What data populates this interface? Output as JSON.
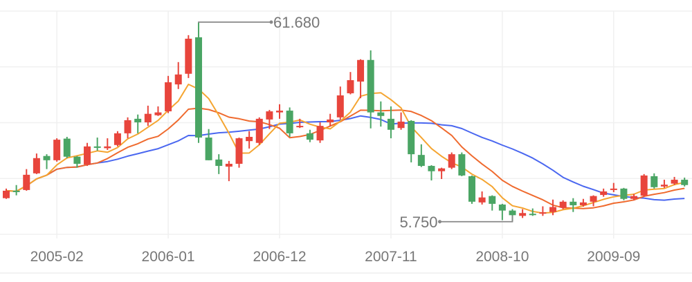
{
  "chart_data": {
    "type": "candlestick",
    "title": "",
    "xlabel": "",
    "ylabel": "",
    "ylim": [
      2.0,
      65.0
    ],
    "grid": true,
    "colors": {
      "up": "#e8453c",
      "down": "#4aa564",
      "grid": "#f0f0f0",
      "marker_line": "#888888"
    },
    "x_tick_labels": [
      "2005-02",
      "2006-01",
      "2006-12",
      "2007-11",
      "2008-10",
      "2009-09"
    ],
    "categories": [
      "2004-09",
      "2004-10",
      "2004-11",
      "2004-12",
      "2005-01",
      "2005-02",
      "2005-03",
      "2005-04",
      "2005-05",
      "2005-06",
      "2005-07",
      "2005-08",
      "2005-09",
      "2005-10",
      "2005-11",
      "2005-12",
      "2006-01",
      "2006-02",
      "2006-03",
      "2006-04",
      "2006-05",
      "2006-06",
      "2006-07",
      "2006-08",
      "2006-09",
      "2006-10",
      "2006-11",
      "2006-12",
      "2007-01",
      "2007-02",
      "2007-03",
      "2007-04",
      "2007-05",
      "2007-06",
      "2007-07",
      "2007-08",
      "2007-09",
      "2007-10",
      "2007-11",
      "2007-12",
      "2008-01",
      "2008-02",
      "2008-03",
      "2008-04",
      "2008-05",
      "2008-06",
      "2008-07",
      "2008-08",
      "2008-09",
      "2008-10",
      "2008-11",
      "2008-12",
      "2009-01",
      "2009-02",
      "2009-03",
      "2009-04",
      "2009-05",
      "2009-06",
      "2009-07",
      "2009-08",
      "2009-09",
      "2009-10",
      "2009-11",
      "2009-12",
      "2010-01",
      "2010-02",
      "2010-03",
      "2010-04"
    ],
    "ohlc_columns": [
      "open",
      "close",
      "low",
      "high"
    ],
    "ohlc": [
      [
        12.2,
        14.3,
        12.0,
        14.9
      ],
      [
        14.3,
        14.0,
        13.0,
        15.9
      ],
      [
        14.5,
        18.8,
        14.3,
        20.4
      ],
      [
        19.2,
        23.5,
        19.0,
        24.8
      ],
      [
        24.1,
        22.9,
        20.4,
        24.6
      ],
      [
        22.9,
        28.7,
        22.5,
        29.1
      ],
      [
        29.0,
        23.9,
        23.5,
        29.5
      ],
      [
        23.9,
        21.9,
        20.8,
        24.1
      ],
      [
        21.7,
        26.8,
        21.3,
        27.8
      ],
      [
        26.8,
        26.4,
        25.6,
        29.3
      ],
      [
        26.3,
        26.8,
        25.8,
        29.1
      ],
      [
        27.2,
        30.5,
        26.8,
        31.1
      ],
      [
        30.5,
        34.2,
        29.1,
        35.0
      ],
      [
        34.6,
        33.6,
        30.5,
        35.8
      ],
      [
        33.6,
        36.0,
        32.6,
        38.3
      ],
      [
        35.6,
        36.4,
        35.4,
        38.1
      ],
      [
        36.7,
        44.9,
        36.2,
        46.7
      ],
      [
        44.3,
        47.1,
        43.0,
        50.6
      ],
      [
        47.3,
        57.2,
        46.1,
        58.2
      ],
      [
        57.6,
        29.3,
        27.8,
        61.68
      ],
      [
        29.3,
        22.9,
        22.9,
        31.7
      ],
      [
        23.1,
        21.3,
        19.0,
        24.6
      ],
      [
        21.1,
        21.9,
        17.0,
        22.7
      ],
      [
        21.9,
        29.1,
        20.8,
        29.3
      ],
      [
        28.3,
        29.5,
        26.2,
        31.1
      ],
      [
        27.8,
        34.6,
        27.2,
        35.0
      ],
      [
        34.4,
        36.7,
        31.7,
        37.1
      ],
      [
        36.4,
        36.9,
        34.6,
        38.7
      ],
      [
        36.9,
        30.5,
        29.5,
        37.8
      ],
      [
        32.3,
        32.6,
        32.0,
        34.6
      ],
      [
        30.5,
        28.7,
        28.0,
        31.5
      ],
      [
        28.5,
        32.6,
        27.8,
        33.6
      ],
      [
        33.6,
        34.4,
        32.5,
        36.0
      ],
      [
        35.0,
        41.2,
        34.4,
        43.7
      ],
      [
        41.8,
        45.5,
        41.5,
        47.8
      ],
      [
        45.1,
        51.2,
        40.4,
        51.4
      ],
      [
        51.2,
        36.4,
        31.9,
        53.9
      ],
      [
        36.4,
        35.4,
        32.4,
        39.5
      ],
      [
        34.6,
        31.5,
        29.1,
        38.1
      ],
      [
        32.0,
        33.8,
        31.5,
        36.4
      ],
      [
        34.0,
        24.6,
        22.3,
        34.2
      ],
      [
        24.4,
        21.3,
        21.0,
        27.4
      ],
      [
        21.3,
        19.8,
        17.2,
        21.5
      ],
      [
        19.8,
        20.6,
        17.6,
        20.8
      ],
      [
        20.8,
        24.6,
        20.4,
        25.1
      ],
      [
        24.6,
        18.6,
        18.4,
        25.1
      ],
      [
        18.4,
        11.2,
        10.6,
        18.6
      ],
      [
        11.0,
        12.4,
        10.4,
        14.1
      ],
      [
        12.8,
        10.6,
        8.7,
        13.0
      ],
      [
        10.4,
        8.7,
        6.0,
        10.6
      ],
      [
        8.7,
        7.4,
        5.75,
        9.1
      ],
      [
        7.2,
        8.0,
        6.6,
        9.1
      ],
      [
        7.8,
        7.6,
        7.2,
        9.3
      ],
      [
        8.0,
        8.2,
        7.2,
        9.9
      ],
      [
        8.3,
        9.7,
        7.4,
        11.8
      ],
      [
        9.5,
        11.2,
        9.1,
        11.6
      ],
      [
        11.2,
        10.2,
        8.3,
        12.2
      ],
      [
        10.2,
        11.0,
        9.8,
        12.0
      ],
      [
        11.2,
        12.8,
        9.9,
        13.0
      ],
      [
        13.1,
        14.1,
        12.6,
        14.9
      ],
      [
        14.5,
        14.9,
        13.9,
        16.5
      ],
      [
        14.9,
        12.0,
        11.6,
        15.1
      ],
      [
        12.0,
        12.8,
        11.6,
        13.4
      ],
      [
        12.9,
        18.6,
        12.6,
        19.0
      ],
      [
        18.4,
        15.3,
        14.9,
        19.2
      ],
      [
        15.5,
        16.0,
        15.1,
        17.4
      ],
      [
        16.3,
        17.4,
        15.9,
        18.2
      ],
      [
        17.4,
        15.9,
        15.5,
        18.0
      ]
    ],
    "moving_averages": [
      {
        "period": 5,
        "color": "#f5a531"
      },
      {
        "period": 10,
        "color": "#ef6a2e"
      },
      {
        "period": 20,
        "color": "#4a67f0"
      }
    ],
    "mark_points": [
      {
        "type": "max",
        "category": "2006-04",
        "value": 61.68,
        "label": "61.680"
      },
      {
        "type": "min",
        "category": "2008-11",
        "value": 5.75,
        "label": "5.750"
      }
    ]
  }
}
